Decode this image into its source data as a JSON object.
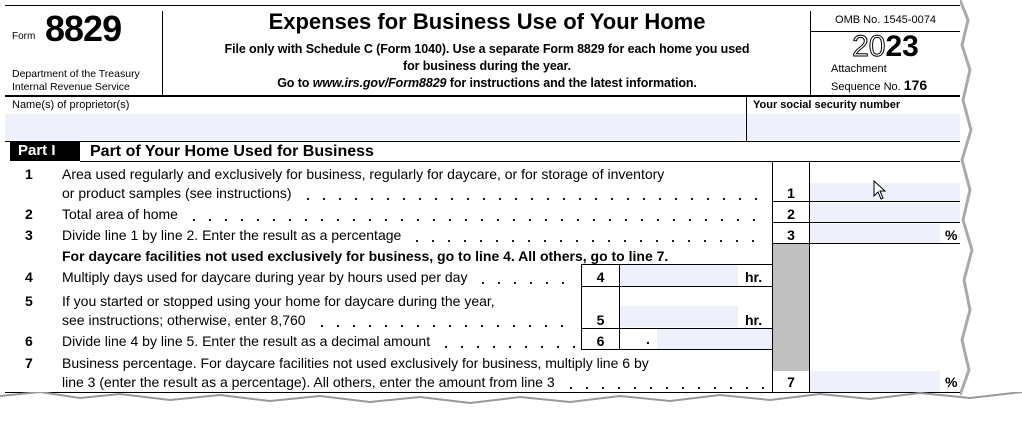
{
  "header": {
    "form_label": "Form",
    "form_number": "8829",
    "department": "Department of the Treasury",
    "agency": "Internal Revenue Service",
    "title": "Expenses for Business Use of Your Home",
    "subtitle_1": "File only with Schedule C (Form 1040). Use a separate Form 8829 for each home you used",
    "subtitle_2": "for business during the year.",
    "subtitle_3_pre": "Go to ",
    "subtitle_3_url": "www.irs.gov/Form8829",
    "subtitle_3_post": " for instructions and the latest information.",
    "omb": "OMB No. 1545-0074",
    "year_outline": "20",
    "year_bold": "23",
    "attachment": "Attachment",
    "sequence_label": "Sequence No.",
    "sequence_no": "176"
  },
  "names": {
    "label": "Name(s) of proprietor(s)",
    "value": "",
    "ssn_label": "Your social security number",
    "ssn_value": ""
  },
  "part1": {
    "badge": "Part I",
    "title": "Part of Your Home Used for Business",
    "lines": [
      {
        "n": "1",
        "text_1": "Area used regularly and exclusively for business, regularly for daycare, or for storage of inventory",
        "text_2": "or product samples (see instructions)",
        "value": ""
      },
      {
        "n": "2",
        "text": "Total area of home",
        "value": ""
      },
      {
        "n": "3",
        "text": "Divide line 1 by line 2. Enter the result as a percentage",
        "value": "",
        "unit": "%"
      },
      {
        "instruction": "For daycare facilities not used exclusively for business, go to line 4. All others, go to line 7."
      },
      {
        "n": "4",
        "text": "Multiply days used for daycare during year by hours used per day",
        "value": "",
        "unit": "hr."
      },
      {
        "n": "5",
        "text_1": "If you started or stopped using your home for daycare during the year,",
        "text_2": "see instructions; otherwise, enter 8,760",
        "value": "",
        "unit": "hr."
      },
      {
        "n": "6",
        "text": "Divide line 4 by line 5. Enter the result as a decimal amount",
        "value": "",
        "prefix": "."
      },
      {
        "n": "7",
        "text_1": "Business percentage. For daycare facilities not used exclusively for business, multiply line 6 by",
        "text_2": "line 3 (enter the result as a percentage). All others, enter the amount from line 3",
        "value": "",
        "unit": "%"
      }
    ]
  },
  "colors": {
    "field_fill": "#eef0fb",
    "shade": "#c0c0c0"
  }
}
